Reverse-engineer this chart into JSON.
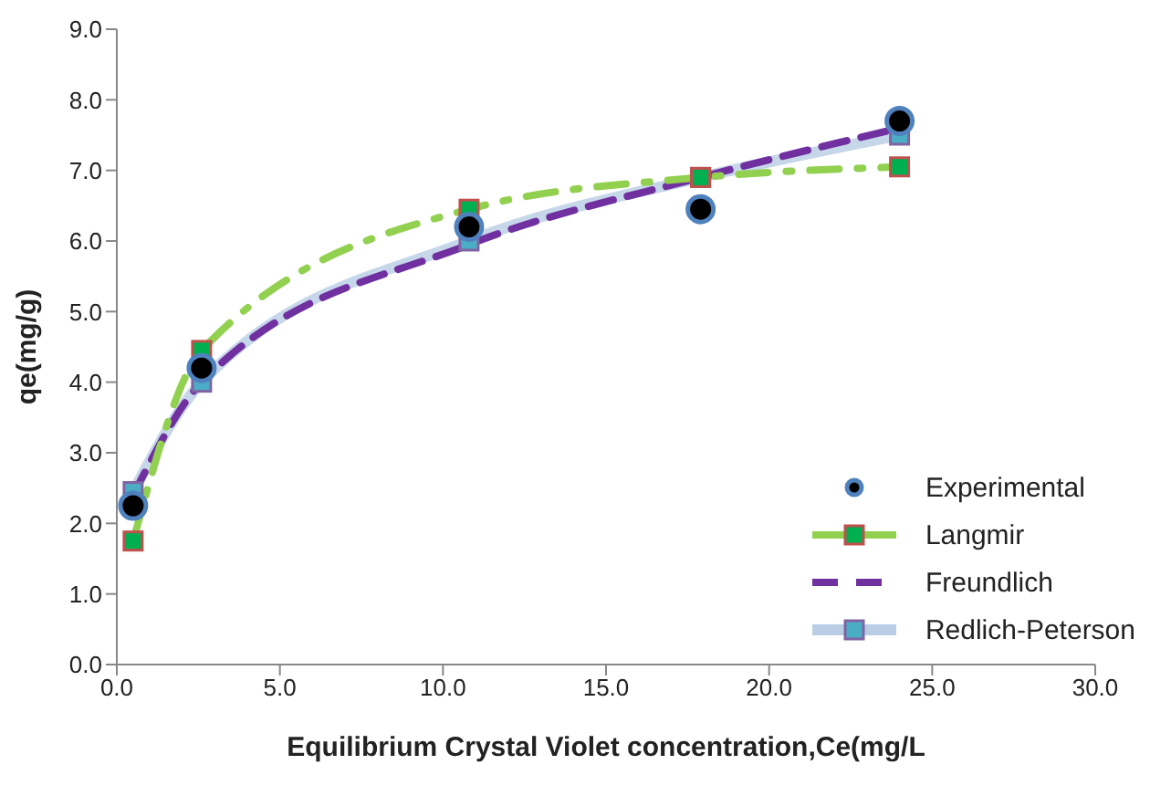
{
  "chart_data": {
    "type": "line",
    "xlabel": "Equilibrium Crystal Violet concentration,Ce(mg/L",
    "ylabel": "qe(mg/g)",
    "x": [
      0.5,
      2.6,
      10.8,
      17.9,
      24.0
    ],
    "series": [
      {
        "name": "Experimental",
        "type": "scatter",
        "color": "#000000",
        "marker": "circle",
        "values": [
          2.25,
          4.2,
          6.2,
          6.45,
          7.7
        ]
      },
      {
        "name": "Langmir",
        "color": "#92d050",
        "marker": "square",
        "line_style": "dashdot",
        "values": [
          1.75,
          4.45,
          6.45,
          6.9,
          7.05
        ]
      },
      {
        "name": "Freundlich",
        "color": "#7030a0",
        "marker": "none",
        "line_style": "dashed",
        "values": [
          2.4,
          4.0,
          5.95,
          6.9,
          7.6
        ]
      },
      {
        "name": "Redlich-Peterson",
        "color": "#b9cde5",
        "marker": "square",
        "line_style": "solid",
        "values": [
          2.45,
          4.0,
          6.0,
          6.9,
          7.5
        ]
      }
    ],
    "xlim": [
      0,
      30
    ],
    "xticks": [
      {
        "value": 0,
        "label": "0.0"
      },
      {
        "value": 5,
        "label": "5.0"
      },
      {
        "value": 10,
        "label": "10.0"
      },
      {
        "value": 15,
        "label": "15.0"
      },
      {
        "value": 20,
        "label": "20.0"
      },
      {
        "value": 25,
        "label": "25.0"
      },
      {
        "value": 30,
        "label": "30.0"
      }
    ],
    "ylim": [
      0,
      9
    ],
    "yticks": [
      {
        "value": 0,
        "label": "0.0"
      },
      {
        "value": 1,
        "label": "1.0"
      },
      {
        "value": 2,
        "label": "2.0"
      },
      {
        "value": 3,
        "label": "3.0"
      },
      {
        "value": 4,
        "label": "4.0"
      },
      {
        "value": 5,
        "label": "5.0"
      },
      {
        "value": 6,
        "label": "6.0"
      },
      {
        "value": 7,
        "label": "7.0"
      },
      {
        "value": 8,
        "label": "8.0"
      },
      {
        "value": 9,
        "label": "9.0"
      }
    ],
    "grid": false,
    "legend": "bottom right"
  }
}
